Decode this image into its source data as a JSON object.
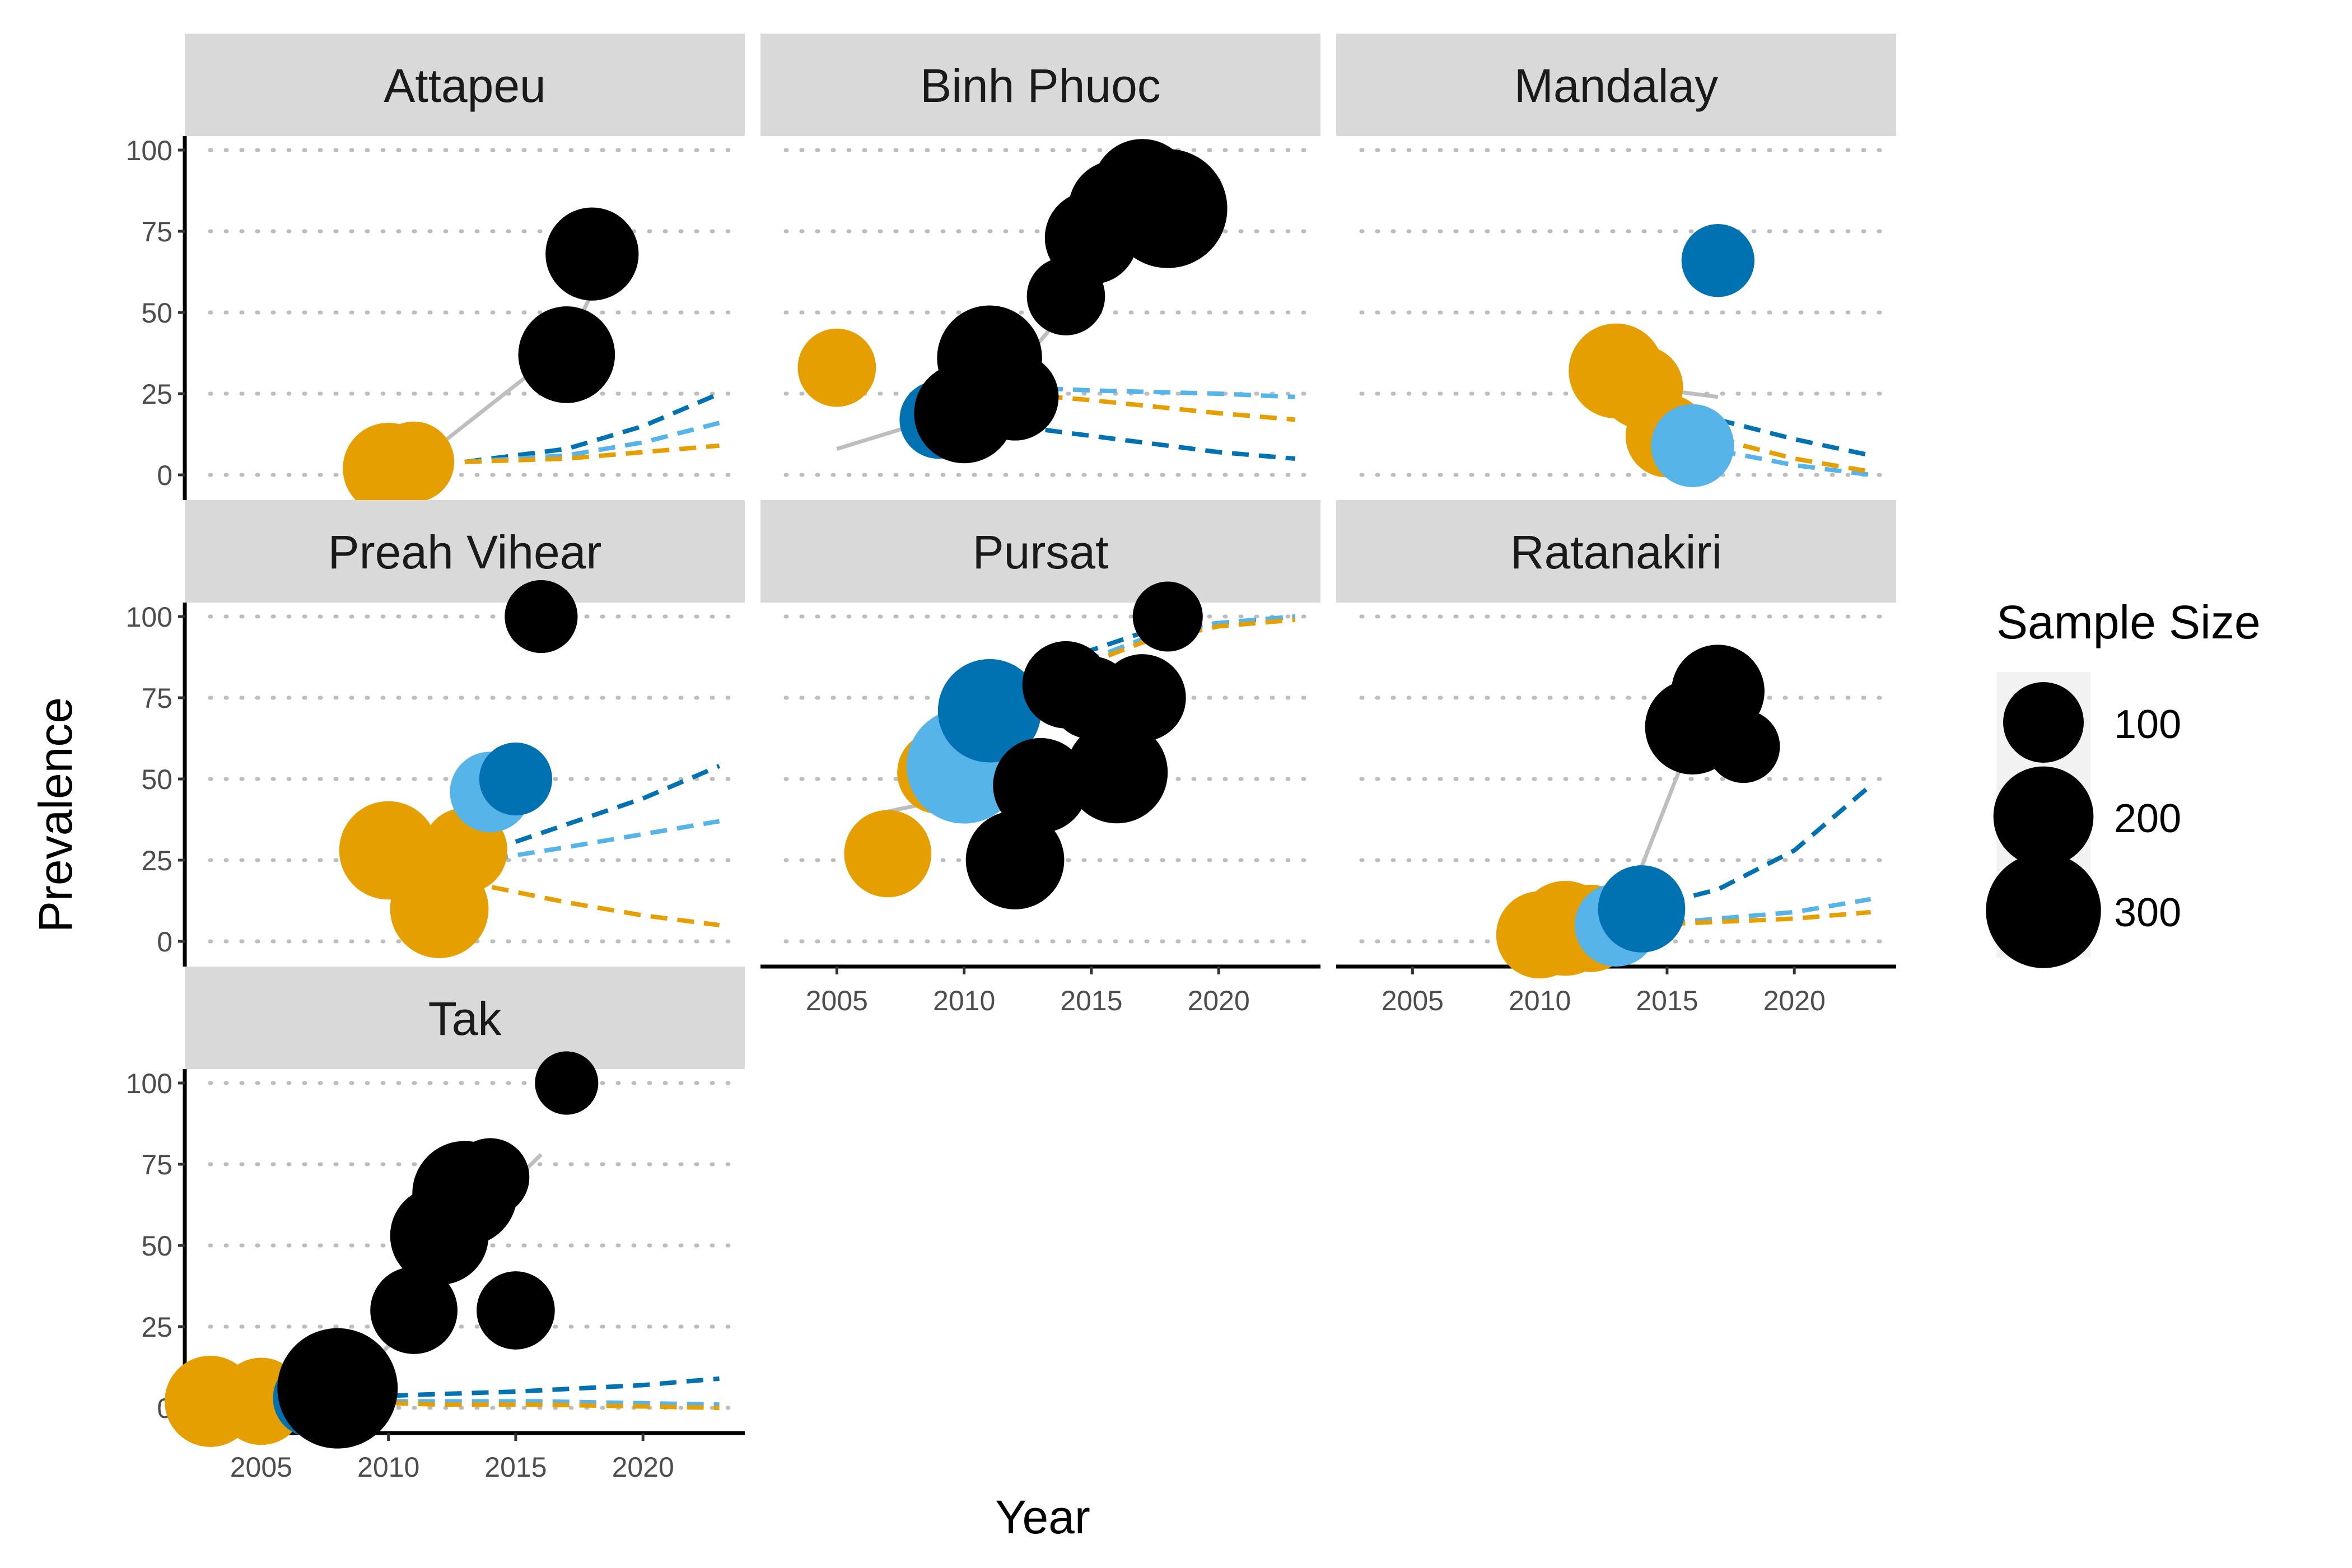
{
  "chart_data": {
    "type": "scatter",
    "xlabel": "Year",
    "ylabel": "Prevalence",
    "xlim": [
      2002,
      2024
    ],
    "ylim": [
      0,
      100
    ],
    "x_ticks": [
      2005,
      2010,
      2015,
      2020
    ],
    "y_ticks": [
      0,
      25,
      50,
      75,
      100
    ],
    "grid": "dotted horizontal major",
    "legend": {
      "title": "Sample Size",
      "placement": "right",
      "entries": [
        {
          "label": "100",
          "size": 100
        },
        {
          "label": "200",
          "size": 200
        },
        {
          "label": "300",
          "size": 300
        }
      ]
    },
    "colors": {
      "black": "#000000",
      "orange": "#E69F00",
      "light_blue": "#56B4E9",
      "dark_blue": "#0072B2",
      "trend_grey": "#bebebe",
      "strip": "#d9d9d9"
    },
    "panels": [
      {
        "title": "Attapeu",
        "points": [
          {
            "x": 2010,
            "y": 2,
            "n": 150,
            "color": "orange"
          },
          {
            "x": 2011,
            "y": 4,
            "n": 100,
            "color": "orange"
          },
          {
            "x": 2017,
            "y": 37,
            "n": 180,
            "color": "black"
          },
          {
            "x": 2018,
            "y": 68,
            "n": 160,
            "color": "black"
          }
        ],
        "trend": [
          [
            2011,
            3
          ],
          [
            2017,
            40
          ],
          [
            2018,
            56
          ]
        ],
        "dashed": [
          {
            "color": "dark_blue",
            "points": [
              [
                2013,
                4
              ],
              [
                2017,
                8
              ],
              [
                2020,
                15
              ],
              [
                2023,
                25
              ]
            ]
          },
          {
            "color": "light_blue",
            "points": [
              [
                2013,
                4
              ],
              [
                2017,
                6
              ],
              [
                2020,
                10
              ],
              [
                2023,
                16
              ]
            ]
          },
          {
            "color": "orange",
            "points": [
              [
                2013,
                4
              ],
              [
                2017,
                5
              ],
              [
                2020,
                7
              ],
              [
                2023,
                9
              ]
            ]
          }
        ]
      },
      {
        "title": "Binh Phuoc",
        "points": [
          {
            "x": 2005,
            "y": 33,
            "n": 90,
            "color": "orange"
          },
          {
            "x": 2009,
            "y": 17,
            "n": 90,
            "color": "dark_blue"
          },
          {
            "x": 2010,
            "y": 19,
            "n": 200,
            "color": "black"
          },
          {
            "x": 2011,
            "y": 36,
            "n": 230,
            "color": "black"
          },
          {
            "x": 2012,
            "y": 24,
            "n": 130,
            "color": "black"
          },
          {
            "x": 2014,
            "y": 55,
            "n": 90,
            "color": "black"
          },
          {
            "x": 2015,
            "y": 73,
            "n": 160,
            "color": "black"
          },
          {
            "x": 2016,
            "y": 82,
            "n": 180,
            "color": "black"
          },
          {
            "x": 2017,
            "y": 88,
            "n": 200,
            "color": "black"
          },
          {
            "x": 2018,
            "y": 82,
            "n": 330,
            "color": "black"
          }
        ],
        "trend": [
          [
            2005,
            8
          ],
          [
            2010,
            20
          ],
          [
            2012,
            32
          ],
          [
            2015,
            60
          ],
          [
            2018,
            82
          ]
        ],
        "dashed": [
          {
            "color": "dark_blue",
            "points": [
              [
                2009,
                18
              ],
              [
                2015,
                12
              ],
              [
                2020,
                7
              ],
              [
                2023,
                5
              ]
            ]
          },
          {
            "color": "light_blue",
            "points": [
              [
                2009,
                28
              ],
              [
                2015,
                26
              ],
              [
                2020,
                25
              ],
              [
                2023,
                24
              ]
            ]
          },
          {
            "color": "orange",
            "points": [
              [
                2009,
                27
              ],
              [
                2015,
                23
              ],
              [
                2020,
                19
              ],
              [
                2023,
                17
              ]
            ]
          }
        ]
      },
      {
        "title": "Mandalay",
        "points": [
          {
            "x": 2013,
            "y": 32,
            "n": 170,
            "color": "orange"
          },
          {
            "x": 2014,
            "y": 27,
            "n": 110,
            "color": "orange"
          },
          {
            "x": 2015,
            "y": 12,
            "n": 110,
            "color": "orange"
          },
          {
            "x": 2016,
            "y": 9,
            "n": 110,
            "color": "light_blue"
          },
          {
            "x": 2017,
            "y": 66,
            "n": 70,
            "color": "dark_blue"
          }
        ],
        "trend": [
          [
            2014,
            27
          ],
          [
            2017,
            24
          ]
        ],
        "dashed": [
          {
            "color": "dark_blue",
            "points": [
              [
                2017,
                17
              ],
              [
                2020,
                11
              ],
              [
                2023,
                6
              ]
            ]
          },
          {
            "color": "light_blue",
            "points": [
              [
                2016,
                9
              ],
              [
                2018,
                6
              ],
              [
                2020,
                3
              ],
              [
                2023,
                0
              ]
            ]
          },
          {
            "color": "orange",
            "points": [
              [
                2015,
                17
              ],
              [
                2018,
                9
              ],
              [
                2020,
                5
              ],
              [
                2023,
                1
              ]
            ]
          }
        ]
      },
      {
        "title": "Preah Vihear",
        "points": [
          {
            "x": 2010,
            "y": 28,
            "n": 190,
            "color": "orange"
          },
          {
            "x": 2012,
            "y": 10,
            "n": 190,
            "color": "orange"
          },
          {
            "x": 2013,
            "y": 28,
            "n": 120,
            "color": "orange"
          },
          {
            "x": 2014,
            "y": 46,
            "n": 100,
            "color": "light_blue"
          },
          {
            "x": 2015,
            "y": 50,
            "n": 70,
            "color": "dark_blue"
          },
          {
            "x": 2016,
            "y": 100,
            "n": 70,
            "color": "black"
          }
        ],
        "trend": [
          [
            2011,
            24
          ],
          [
            2014,
            35
          ]
        ],
        "dashed": [
          {
            "color": "dark_blue",
            "points": [
              [
                2014,
                28
              ],
              [
                2017,
                36
              ],
              [
                2020,
                44
              ],
              [
                2023,
                54
              ]
            ]
          },
          {
            "color": "light_blue",
            "points": [
              [
                2013,
                24
              ],
              [
                2017,
                29
              ],
              [
                2020,
                33
              ],
              [
                2023,
                37
              ]
            ]
          },
          {
            "color": "orange",
            "points": [
              [
                2012,
                20
              ],
              [
                2017,
                12
              ],
              [
                2020,
                8
              ],
              [
                2023,
                5
              ]
            ]
          }
        ]
      },
      {
        "title": "Pursat",
        "points": [
          {
            "x": 2007,
            "y": 27,
            "n": 130,
            "color": "orange"
          },
          {
            "x": 2009,
            "y": 52,
            "n": 110,
            "color": "orange"
          },
          {
            "x": 2010,
            "y": 54,
            "n": 300,
            "color": "light_blue"
          },
          {
            "x": 2011,
            "y": 71,
            "n": 220,
            "color": "dark_blue"
          },
          {
            "x": 2012,
            "y": 25,
            "n": 190,
            "color": "black"
          },
          {
            "x": 2013,
            "y": 48,
            "n": 170,
            "color": "black"
          },
          {
            "x": 2014,
            "y": 79,
            "n": 130,
            "color": "black"
          },
          {
            "x": 2015,
            "y": 75,
            "n": 110,
            "color": "black"
          },
          {
            "x": 2016,
            "y": 52,
            "n": 210,
            "color": "black"
          },
          {
            "x": 2017,
            "y": 75,
            "n": 130,
            "color": "black"
          },
          {
            "x": 2018,
            "y": 100,
            "n": 60,
            "color": "black"
          }
        ],
        "trend": [
          [
            2007,
            40
          ],
          [
            2012,
            48
          ],
          [
            2017,
            55
          ]
        ],
        "dashed": [
          {
            "color": "dark_blue",
            "points": [
              [
                2011,
                72
              ],
              [
                2014,
                87
              ],
              [
                2017,
                95
              ],
              [
                2020,
                98
              ],
              [
                2023,
                100
              ]
            ]
          },
          {
            "color": "light_blue",
            "points": [
              [
                2011,
                70
              ],
              [
                2014,
                84
              ],
              [
                2017,
                93
              ],
              [
                2020,
                98
              ],
              [
                2023,
                100
              ]
            ]
          },
          {
            "color": "orange",
            "points": [
              [
                2011,
                69
              ],
              [
                2014,
                83
              ],
              [
                2017,
                92
              ],
              [
                2020,
                97
              ],
              [
                2023,
                99
              ]
            ]
          }
        ]
      },
      {
        "title": "Ratanakiri",
        "points": [
          {
            "x": 2010,
            "y": 2,
            "n": 130,
            "color": "orange"
          },
          {
            "x": 2011,
            "y": 4,
            "n": 170,
            "color": "orange"
          },
          {
            "x": 2012,
            "y": 4,
            "n": 130,
            "color": "orange"
          },
          {
            "x": 2013,
            "y": 5,
            "n": 110,
            "color": "light_blue"
          },
          {
            "x": 2014,
            "y": 10,
            "n": 130,
            "color": "dark_blue"
          },
          {
            "x": 2016,
            "y": 66,
            "n": 170,
            "color": "black"
          },
          {
            "x": 2017,
            "y": 77,
            "n": 160,
            "color": "black"
          },
          {
            "x": 2018,
            "y": 60,
            "n": 70,
            "color": "black"
          }
        ],
        "trend": [
          [
            2011,
            3
          ],
          [
            2014,
            23
          ],
          [
            2016,
            63
          ],
          [
            2018,
            84
          ]
        ],
        "dashed": [
          {
            "color": "dark_blue",
            "points": [
              [
                2014,
                10
              ],
              [
                2017,
                16
              ],
              [
                2020,
                28
              ],
              [
                2023,
                48
              ]
            ]
          },
          {
            "color": "light_blue",
            "points": [
              [
                2014,
                5
              ],
              [
                2017,
                7
              ],
              [
                2020,
                9
              ],
              [
                2023,
                13
              ]
            ]
          },
          {
            "color": "orange",
            "points": [
              [
                2014,
                5
              ],
              [
                2017,
                6
              ],
              [
                2020,
                7
              ],
              [
                2023,
                9
              ]
            ]
          }
        ]
      },
      {
        "title": "Tak",
        "points": [
          {
            "x": 2003,
            "y": 2,
            "n": 150,
            "color": "orange"
          },
          {
            "x": 2005,
            "y": 2,
            "n": 130,
            "color": "orange"
          },
          {
            "x": 2007,
            "y": 3,
            "n": 90,
            "color": "dark_blue"
          },
          {
            "x": 2008,
            "y": 6,
            "n": 340,
            "color": "black"
          },
          {
            "x": 2011,
            "y": 30,
            "n": 130,
            "color": "black"
          },
          {
            "x": 2012,
            "y": 53,
            "n": 190,
            "color": "black"
          },
          {
            "x": 2013,
            "y": 66,
            "n": 230,
            "color": "black"
          },
          {
            "x": 2014,
            "y": 71,
            "n": 90,
            "color": "black"
          },
          {
            "x": 2015,
            "y": 30,
            "n": 90,
            "color": "black"
          },
          {
            "x": 2017,
            "y": 100,
            "n": 40,
            "color": "black"
          }
        ],
        "trend": [
          [
            2008,
            3
          ],
          [
            2011,
            27
          ],
          [
            2013,
            55
          ],
          [
            2016,
            78
          ]
        ],
        "dashed": [
          {
            "color": "dark_blue",
            "points": [
              [
                2008,
                3
              ],
              [
                2011,
                4
              ],
              [
                2015,
                5
              ],
              [
                2020,
                7
              ],
              [
                2023,
                9
              ]
            ]
          },
          {
            "color": "light_blue",
            "points": [
              [
                2008,
                2
              ],
              [
                2012,
                2
              ],
              [
                2016,
                2
              ],
              [
                2023,
                1
              ]
            ]
          },
          {
            "color": "orange",
            "points": [
              [
                2008,
                2
              ],
              [
                2012,
                1
              ],
              [
                2016,
                1
              ],
              [
                2023,
                0
              ]
            ]
          }
        ]
      }
    ]
  }
}
